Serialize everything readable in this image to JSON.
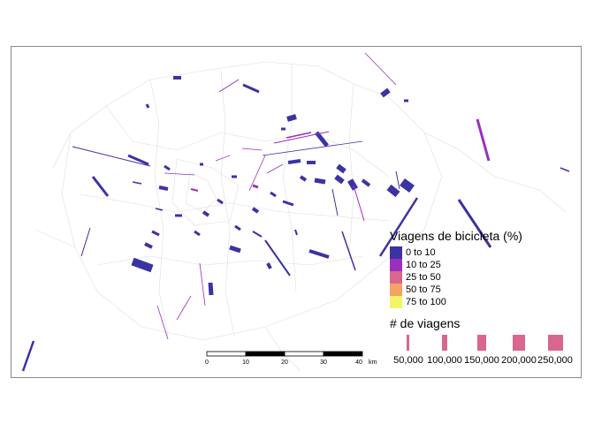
{
  "legend_color": {
    "title": "Viagens de bicicleta (%)",
    "items": [
      {
        "label": "0 to 10",
        "color": "#3b33a3"
      },
      {
        "label": "10 to 25",
        "color": "#9a2fbf"
      },
      {
        "label": "25 to 50",
        "color": "#d9668c"
      },
      {
        "label": "50 to 75",
        "color": "#f5a266"
      },
      {
        "label": "75 to 100",
        "color": "#f4f564"
      }
    ]
  },
  "legend_size": {
    "title": "# de viagens",
    "items": [
      {
        "label": "50,000",
        "value": 50000
      },
      {
        "label": "100,000",
        "value": 100000
      },
      {
        "label": "150,000",
        "value": 150000
      },
      {
        "label": "200,000",
        "value": 200000
      },
      {
        "label": "250,000",
        "value": 250000
      }
    ],
    "color": "#d9668c"
  },
  "scalebar": {
    "ticks": [
      "0",
      "10",
      "20",
      "30",
      "40"
    ],
    "unit": "km"
  }
}
